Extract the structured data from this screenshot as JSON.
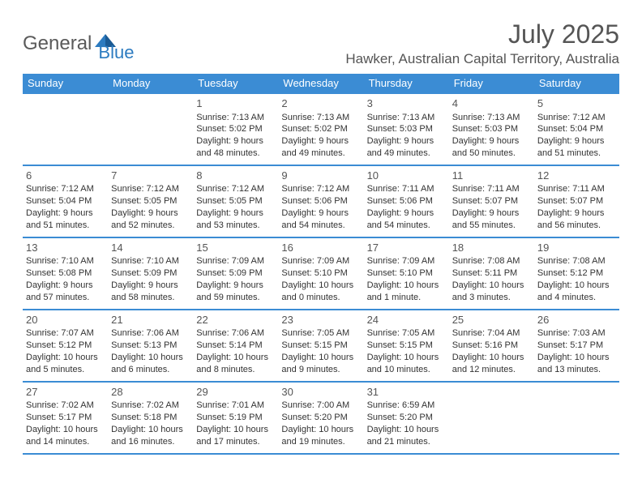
{
  "brand": {
    "name_part1": "General",
    "name_part2": "Blue",
    "color_gray": "#5a5a5a",
    "color_blue": "#2c7bc0"
  },
  "header": {
    "month_year": "July 2025",
    "location": "Hawker, Australian Capital Territory, Australia"
  },
  "colors": {
    "header_bg": "#3b8cd4",
    "header_text": "#ffffff",
    "border": "#3b8cd4",
    "text": "#333333"
  },
  "day_names": [
    "Sunday",
    "Monday",
    "Tuesday",
    "Wednesday",
    "Thursday",
    "Friday",
    "Saturday"
  ],
  "weeks": [
    [
      null,
      null,
      {
        "d": "1",
        "sr": "7:13 AM",
        "ss": "5:02 PM",
        "dl": "9 hours and 48 minutes."
      },
      {
        "d": "2",
        "sr": "7:13 AM",
        "ss": "5:02 PM",
        "dl": "9 hours and 49 minutes."
      },
      {
        "d": "3",
        "sr": "7:13 AM",
        "ss": "5:03 PM",
        "dl": "9 hours and 49 minutes."
      },
      {
        "d": "4",
        "sr": "7:13 AM",
        "ss": "5:03 PM",
        "dl": "9 hours and 50 minutes."
      },
      {
        "d": "5",
        "sr": "7:12 AM",
        "ss": "5:04 PM",
        "dl": "9 hours and 51 minutes."
      }
    ],
    [
      {
        "d": "6",
        "sr": "7:12 AM",
        "ss": "5:04 PM",
        "dl": "9 hours and 51 minutes."
      },
      {
        "d": "7",
        "sr": "7:12 AM",
        "ss": "5:05 PM",
        "dl": "9 hours and 52 minutes."
      },
      {
        "d": "8",
        "sr": "7:12 AM",
        "ss": "5:05 PM",
        "dl": "9 hours and 53 minutes."
      },
      {
        "d": "9",
        "sr": "7:12 AM",
        "ss": "5:06 PM",
        "dl": "9 hours and 54 minutes."
      },
      {
        "d": "10",
        "sr": "7:11 AM",
        "ss": "5:06 PM",
        "dl": "9 hours and 54 minutes."
      },
      {
        "d": "11",
        "sr": "7:11 AM",
        "ss": "5:07 PM",
        "dl": "9 hours and 55 minutes."
      },
      {
        "d": "12",
        "sr": "7:11 AM",
        "ss": "5:07 PM",
        "dl": "9 hours and 56 minutes."
      }
    ],
    [
      {
        "d": "13",
        "sr": "7:10 AM",
        "ss": "5:08 PM",
        "dl": "9 hours and 57 minutes."
      },
      {
        "d": "14",
        "sr": "7:10 AM",
        "ss": "5:09 PM",
        "dl": "9 hours and 58 minutes."
      },
      {
        "d": "15",
        "sr": "7:09 AM",
        "ss": "5:09 PM",
        "dl": "9 hours and 59 minutes."
      },
      {
        "d": "16",
        "sr": "7:09 AM",
        "ss": "5:10 PM",
        "dl": "10 hours and 0 minutes."
      },
      {
        "d": "17",
        "sr": "7:09 AM",
        "ss": "5:10 PM",
        "dl": "10 hours and 1 minute."
      },
      {
        "d": "18",
        "sr": "7:08 AM",
        "ss": "5:11 PM",
        "dl": "10 hours and 3 minutes."
      },
      {
        "d": "19",
        "sr": "7:08 AM",
        "ss": "5:12 PM",
        "dl": "10 hours and 4 minutes."
      }
    ],
    [
      {
        "d": "20",
        "sr": "7:07 AM",
        "ss": "5:12 PM",
        "dl": "10 hours and 5 minutes."
      },
      {
        "d": "21",
        "sr": "7:06 AM",
        "ss": "5:13 PM",
        "dl": "10 hours and 6 minutes."
      },
      {
        "d": "22",
        "sr": "7:06 AM",
        "ss": "5:14 PM",
        "dl": "10 hours and 8 minutes."
      },
      {
        "d": "23",
        "sr": "7:05 AM",
        "ss": "5:15 PM",
        "dl": "10 hours and 9 minutes."
      },
      {
        "d": "24",
        "sr": "7:05 AM",
        "ss": "5:15 PM",
        "dl": "10 hours and 10 minutes."
      },
      {
        "d": "25",
        "sr": "7:04 AM",
        "ss": "5:16 PM",
        "dl": "10 hours and 12 minutes."
      },
      {
        "d": "26",
        "sr": "7:03 AM",
        "ss": "5:17 PM",
        "dl": "10 hours and 13 minutes."
      }
    ],
    [
      {
        "d": "27",
        "sr": "7:02 AM",
        "ss": "5:17 PM",
        "dl": "10 hours and 14 minutes."
      },
      {
        "d": "28",
        "sr": "7:02 AM",
        "ss": "5:18 PM",
        "dl": "10 hours and 16 minutes."
      },
      {
        "d": "29",
        "sr": "7:01 AM",
        "ss": "5:19 PM",
        "dl": "10 hours and 17 minutes."
      },
      {
        "d": "30",
        "sr": "7:00 AM",
        "ss": "5:20 PM",
        "dl": "10 hours and 19 minutes."
      },
      {
        "d": "31",
        "sr": "6:59 AM",
        "ss": "5:20 PM",
        "dl": "10 hours and 21 minutes."
      },
      null,
      null
    ]
  ],
  "labels": {
    "sunrise": "Sunrise:",
    "sunset": "Sunset:",
    "daylight": "Daylight:"
  }
}
